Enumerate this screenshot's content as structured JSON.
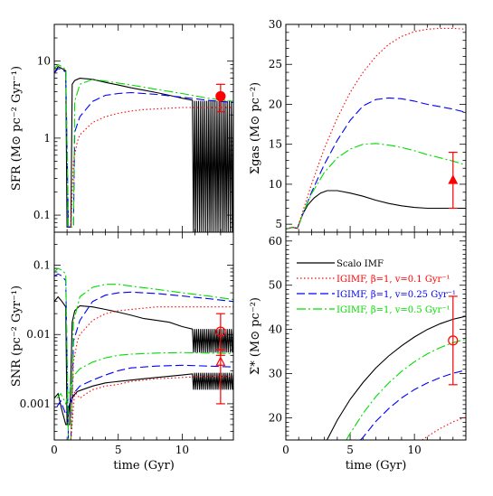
{
  "chart_data": [
    {
      "id": "sfr",
      "type": "line",
      "ylabel": "SFR (M⊙ pc⁻² Gyr⁻¹)",
      "xlabel": "",
      "xlim": [
        0,
        14
      ],
      "ylim": [
        0.06,
        30
      ],
      "yscale": "log",
      "xticks": [
        0,
        5,
        10
      ],
      "xtick_labels": [
        "",
        "",
        ""
      ],
      "yticks": [
        0.1,
        1,
        10
      ],
      "ytick_labels": [
        "0.1",
        "1",
        "10"
      ],
      "series": [
        {
          "color": "#000000",
          "dash": "",
          "x": [
            0,
            0.3,
            0.6,
            0.9,
            1.0,
            1.1,
            1.2,
            1.3,
            1.4,
            1.6,
            2.0,
            3,
            4,
            5,
            6,
            7,
            8,
            9,
            10,
            10.8
          ],
          "y": [
            7,
            8.5,
            8,
            7.5,
            0.07,
            0.07,
            0.07,
            0.07,
            5.0,
            5.6,
            6.0,
            5.8,
            5.3,
            4.9,
            4.5,
            4.2,
            3.9,
            3.6,
            3.3,
            3.1
          ],
          "osc": {
            "x0": 10.8,
            "x1": 14,
            "hi": 3.05,
            "lo": 0.06,
            "n": 40
          }
        },
        {
          "color": "#0000ff",
          "dash": "9,4",
          "x": [
            0,
            0.3,
            0.6,
            0.9,
            1.1,
            1.3,
            1.5,
            1.6,
            2,
            3,
            4,
            5,
            6,
            7,
            8,
            10,
            12,
            14
          ],
          "y": [
            7,
            8,
            7.8,
            7.2,
            0.07,
            0.07,
            0.07,
            1.2,
            1.9,
            3.0,
            3.6,
            3.8,
            3.9,
            3.8,
            3.7,
            3.4,
            3.1,
            2.9
          ]
        },
        {
          "color": "#00dd00",
          "dash": "10,3,2,3",
          "x": [
            0,
            0.3,
            0.6,
            0.9,
            1.1,
            1.3,
            1.5,
            1.6,
            2,
            3,
            4,
            5,
            6,
            8,
            10,
            12,
            14
          ],
          "y": [
            8,
            9,
            8.5,
            7.8,
            0.07,
            0.07,
            0.07,
            3.0,
            5.0,
            5.8,
            5.5,
            5.2,
            4.9,
            4.3,
            3.8,
            3.3,
            3.0
          ]
        },
        {
          "color": "#ff0000",
          "dash": "1.5,2.5",
          "x": [
            1.3,
            1.5,
            1.8,
            2,
            3,
            4,
            5,
            6,
            7,
            8,
            9,
            10,
            11,
            12,
            13,
            14
          ],
          "y": [
            0.07,
            0.5,
            0.9,
            1.1,
            1.6,
            1.9,
            2.1,
            2.25,
            2.35,
            2.4,
            2.45,
            2.5,
            2.5,
            2.5,
            2.5,
            2.5
          ]
        }
      ],
      "observations": [
        {
          "x": 13,
          "y": 3.5,
          "ylo": 2.2,
          "yhi": 5.0,
          "marker": "filled-circle",
          "color": "#ff0000"
        }
      ]
    },
    {
      "id": "sgas",
      "type": "line",
      "ylabel": "Σgas (M⊙ pc⁻²)",
      "xlabel": "",
      "xlim": [
        0,
        14
      ],
      "ylim": [
        4,
        30
      ],
      "yscale": "linear",
      "xticks": [
        0,
        5,
        10
      ],
      "xtick_labels": [
        "",
        "",
        ""
      ],
      "yticks": [
        5,
        10,
        15,
        20,
        25,
        30
      ],
      "ytick_labels": [
        "5",
        "10",
        "15",
        "20",
        "25",
        "30"
      ],
      "series": [
        {
          "color": "#000000",
          "dash": "",
          "x": [
            0,
            0.5,
            0.9,
            1.3,
            1.7,
            2.2,
            2.7,
            3.2,
            4,
            5,
            6,
            7,
            8,
            9,
            10,
            11,
            12,
            13,
            14
          ],
          "y": [
            4.4,
            4.6,
            4.5,
            6.2,
            7.4,
            8.3,
            8.9,
            9.2,
            9.2,
            8.9,
            8.5,
            8.0,
            7.6,
            7.3,
            7.1,
            7.0,
            7.0,
            7.0,
            7.0
          ]
        },
        {
          "color": "#0000ff",
          "dash": "9,4",
          "x": [
            0,
            0.5,
            0.9,
            1.5,
            2,
            3,
            4,
            5,
            6,
            7,
            8,
            9,
            10,
            11,
            12,
            13,
            14
          ],
          "y": [
            4.4,
            4.6,
            4.5,
            7.0,
            9.0,
            12.5,
            15.5,
            18.0,
            19.8,
            20.6,
            20.8,
            20.7,
            20.4,
            20.0,
            19.7,
            19.4,
            19.0
          ]
        },
        {
          "color": "#00dd00",
          "dash": "10,3,2,3",
          "x": [
            0,
            0.5,
            0.9,
            1.5,
            2,
            3,
            4,
            5,
            6,
            7,
            8,
            9,
            10,
            11,
            12,
            13,
            14
          ],
          "y": [
            4.4,
            4.6,
            4.5,
            7.0,
            8.8,
            11.5,
            13.3,
            14.4,
            15.0,
            15.1,
            14.9,
            14.6,
            14.2,
            13.7,
            13.3,
            12.9,
            12.4
          ]
        },
        {
          "color": "#ff0000",
          "dash": "1.5,2.5",
          "x": [
            0,
            0.5,
            0.9,
            1.5,
            2,
            3,
            4,
            5,
            6,
            7,
            8,
            9,
            10,
            11,
            12,
            13,
            14
          ],
          "y": [
            4.4,
            4.6,
            4.5,
            7.5,
            10,
            14.5,
            18.3,
            21.5,
            24.0,
            26.0,
            27.5,
            28.5,
            29.1,
            29.4,
            29.5,
            29.5,
            29.4
          ]
        }
      ],
      "observations": [
        {
          "x": 13,
          "y": 10.5,
          "ylo": 7,
          "yhi": 14,
          "marker": "filled-triangle",
          "color": "#ff0000"
        }
      ]
    },
    {
      "id": "snr",
      "type": "line",
      "ylabel": "SNR (pc⁻² Gyr⁻¹)",
      "xlabel": "time (Gyr)",
      "xlim": [
        0,
        14
      ],
      "ylim": [
        0.0003,
        0.3
      ],
      "yscale": "log",
      "xticks": [
        0,
        5,
        10
      ],
      "xtick_labels": [
        "0",
        "5",
        "10"
      ],
      "yticks": [
        0.001,
        0.01,
        0.1
      ],
      "ytick_labels": [
        "0.001",
        "0.01",
        "0.1"
      ],
      "series": [
        {
          "color": "#000000",
          "dash": "",
          "x": [
            0,
            0.3,
            0.6,
            0.9,
            1.0,
            1.2,
            1.4,
            1.6,
            2,
            3,
            4,
            5,
            6,
            7,
            8,
            9,
            10,
            10.8
          ],
          "y": [
            0.03,
            0.035,
            0.03,
            0.025,
            0.0005,
            0.0005,
            0.015,
            0.022,
            0.026,
            0.025,
            0.023,
            0.021,
            0.019,
            0.017,
            0.016,
            0.015,
            0.013,
            0.012
          ],
          "osc": {
            "x0": 10.8,
            "x1": 14,
            "hi": 0.012,
            "lo": 0.0055,
            "n": 40
          }
        },
        {
          "color": "#000000",
          "dash": "",
          "x": [
            0,
            0.3,
            0.6,
            0.9,
            1.0,
            1.2,
            1.5,
            1.8,
            2.2,
            3,
            4,
            5,
            6,
            7,
            8,
            9,
            10,
            10.8
          ],
          "y": [
            0.0012,
            0.0014,
            0.0008,
            0.0005,
            0.0005,
            0.001,
            0.0013,
            0.0015,
            0.0016,
            0.0018,
            0.002,
            0.0021,
            0.0022,
            0.0023,
            0.0024,
            0.0025,
            0.0026,
            0.0027
          ],
          "osc": {
            "x0": 10.8,
            "x1": 14,
            "hi": 0.0028,
            "lo": 0.0016,
            "n": 40
          }
        },
        {
          "color": "#0000ff",
          "dash": "9,4",
          "x": [
            0,
            0.3,
            0.6,
            0.9,
            1.1,
            1.3,
            1.5,
            2,
            3,
            4,
            5,
            6,
            7,
            8,
            10,
            12,
            14
          ],
          "y": [
            0.07,
            0.075,
            0.07,
            0.06,
            0.0003,
            0.0003,
            0.008,
            0.016,
            0.03,
            0.037,
            0.04,
            0.041,
            0.04,
            0.039,
            0.036,
            0.033,
            0.03
          ]
        },
        {
          "color": "#0000ff",
          "dash": "9,4",
          "x": [
            0.2,
            0.5,
            0.9,
            1.5,
            2,
            3,
            4,
            5,
            6,
            8,
            10,
            12,
            14
          ],
          "y": [
            0.0009,
            0.0011,
            0.0007,
            0.0014,
            0.0018,
            0.0022,
            0.0026,
            0.003,
            0.0033,
            0.0035,
            0.0036,
            0.0035,
            0.0034
          ]
        },
        {
          "color": "#00dd00",
          "dash": "10,3,2,3",
          "x": [
            0,
            0.3,
            0.6,
            0.9,
            1.1,
            1.3,
            1.5,
            2,
            3,
            4,
            5,
            6,
            8,
            10,
            12,
            14
          ],
          "y": [
            0.08,
            0.09,
            0.085,
            0.075,
            0.0003,
            0.0003,
            0.015,
            0.035,
            0.048,
            0.053,
            0.053,
            0.05,
            0.045,
            0.04,
            0.036,
            0.032
          ]
        },
        {
          "color": "#00dd00",
          "dash": "10,3,2,3",
          "x": [
            0.2,
            0.5,
            0.9,
            1.5,
            2,
            3,
            4,
            5,
            6,
            8,
            10,
            12,
            14
          ],
          "y": [
            0.0012,
            0.0014,
            0.001,
            0.0025,
            0.0032,
            0.004,
            0.0046,
            0.005,
            0.0052,
            0.0054,
            0.0055,
            0.0054,
            0.0053
          ]
        },
        {
          "color": "#ff0000",
          "dash": "1.5,2.5",
          "x": [
            1.3,
            1.5,
            1.8,
            2,
            3,
            4,
            5,
            6,
            7,
            8,
            10,
            12,
            14
          ],
          "y": [
            0.0003,
            0.004,
            0.008,
            0.01,
            0.016,
            0.02,
            0.022,
            0.023,
            0.024,
            0.025,
            0.025,
            0.025,
            0.025
          ]
        },
        {
          "color": "#ff0000",
          "dash": "1.5,2.5",
          "x": [
            1.3,
            1.6,
            2,
            2.5,
            3,
            4,
            5,
            6,
            7,
            8,
            10,
            12,
            14
          ],
          "y": [
            0.0003,
            0.0015,
            0.0012,
            0.0014,
            0.0016,
            0.0018,
            0.0019,
            0.0021,
            0.0022,
            0.0023,
            0.0024,
            0.0025,
            0.0025
          ]
        }
      ],
      "observations": [
        {
          "x": 13,
          "y": 0.011,
          "ylo": 0.005,
          "yhi": 0.02,
          "marker": "open-circle",
          "color": "#ff0000"
        },
        {
          "x": 13,
          "y": 0.004,
          "ylo": 0.001,
          "yhi": 0.006,
          "marker": "open-triangle",
          "color": "#ff0000"
        }
      ]
    },
    {
      "id": "sstar",
      "type": "line",
      "ylabel": "Σ* (M⊙ pc⁻²)",
      "xlabel": "time (Gyr)",
      "xlim": [
        0,
        14
      ],
      "ylim": [
        15,
        62
      ],
      "yscale": "linear",
      "xticks": [
        0,
        5,
        10
      ],
      "xtick_labels": [
        "0",
        "5",
        "10"
      ],
      "yticks": [
        20,
        30,
        40,
        50,
        60
      ],
      "ytick_labels": [
        "20",
        "30",
        "40",
        "50",
        "60"
      ],
      "series": [
        {
          "color": "#000000",
          "dash": "",
          "x": [
            3.2,
            4,
            5,
            6,
            7,
            8,
            9,
            10,
            11,
            12,
            13,
            14
          ],
          "y": [
            15,
            19.5,
            24.2,
            28.0,
            31.3,
            34.0,
            36.3,
            38.3,
            40.0,
            41.3,
            42.3,
            43.0
          ]
        },
        {
          "color": "#00dd00",
          "dash": "10,3,2,3",
          "x": [
            4.7,
            5,
            6,
            7,
            8,
            9,
            10,
            11,
            12,
            13,
            14
          ],
          "y": [
            15,
            16.5,
            21,
            24.8,
            27.9,
            30.5,
            32.7,
            34.5,
            35.9,
            37.0,
            37.8
          ]
        },
        {
          "color": "#0000ff",
          "dash": "9,4",
          "x": [
            5.8,
            6,
            7,
            8,
            9,
            10,
            11,
            12,
            13,
            14
          ],
          "y": [
            15,
            15.6,
            19.2,
            22.1,
            24.5,
            26.4,
            27.9,
            29.1,
            30.1,
            30.8
          ]
        },
        {
          "color": "#ff0000",
          "dash": "1.5,2.5",
          "x": [
            10.6,
            11,
            12,
            13,
            14
          ],
          "y": [
            15,
            15.8,
            17.6,
            19.1,
            20.2
          ]
        }
      ],
      "observations": [
        {
          "x": 13,
          "y": 37.5,
          "ylo": 27.5,
          "yhi": 47.5,
          "marker": "open-circle",
          "color": "#ff0000"
        }
      ]
    }
  ],
  "legend": {
    "entries": [
      {
        "label": "Scalo IMF",
        "color": "#000000",
        "dash": ""
      },
      {
        "label": "IGIMF, β=1, v=0.1 Gyr⁻¹",
        "color": "#ff0000",
        "dash": "1.5,2.5"
      },
      {
        "label": "IGIMF, β=1, v=0.25 Gyr⁻¹",
        "color": "#0000ff",
        "dash": "9,4"
      },
      {
        "label": "IGIMF, β=1, v=0.5 Gyr⁻¹",
        "color": "#00dd00",
        "dash": "10,3,2,3"
      }
    ]
  }
}
